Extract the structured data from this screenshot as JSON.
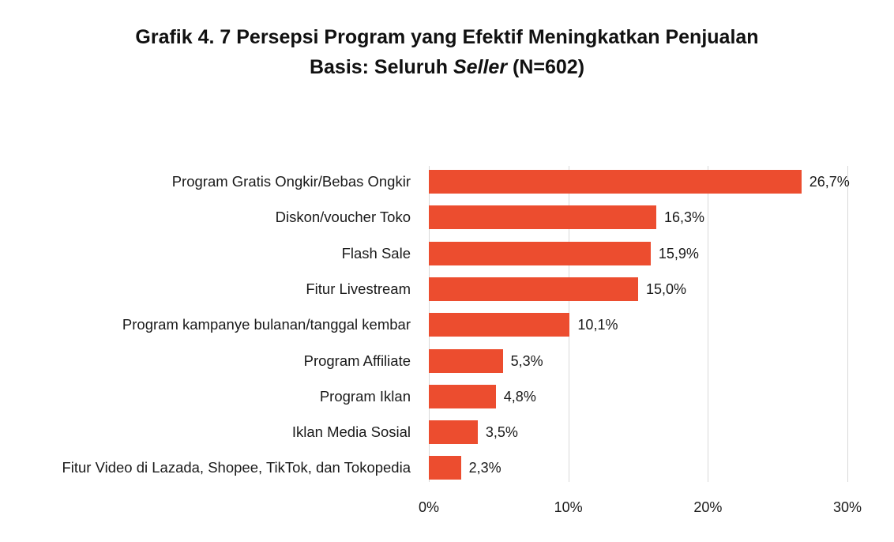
{
  "title": {
    "line1": "Grafik 4. 7  Persepsi Program yang Efektif Meningkatkan Penjualan",
    "line2_prefix": "Basis: Seluruh ",
    "line2_italic": "Seller",
    "line2_suffix": " (N=602)"
  },
  "colors": {
    "bar": "#ec4d2f",
    "gridline": "#d9d9d9",
    "text": "#1a1a1a"
  },
  "chart_data": {
    "type": "bar",
    "orientation": "horizontal",
    "title": "Grafik 4. 7 Persepsi Program yang Efektif Meningkatkan Penjualan",
    "subtitle": "Basis: Seluruh Seller (N=602)",
    "xlabel": "",
    "ylabel": "",
    "categories": [
      "Program Gratis Ongkir/Bebas Ongkir",
      "Diskon/voucher Toko",
      "Flash Sale",
      "Fitur Livestream",
      "Program kampanye bulanan/tanggal kembar",
      "Program Affiliate",
      "Program Iklan",
      "Iklan Media Sosial",
      "Fitur Video di Lazada, Shopee, TikTok, dan Tokopedia"
    ],
    "values": [
      26.7,
      16.3,
      15.9,
      15.0,
      10.1,
      5.3,
      4.8,
      3.5,
      2.3
    ],
    "value_labels": [
      "26,7%",
      "16,3%",
      "15,9%",
      "15,0%",
      "10,1%",
      "5,3%",
      "4,8%",
      "3,5%",
      "2,3%"
    ],
    "xlim": [
      0,
      30
    ],
    "x_ticks": [
      0,
      10,
      20,
      30
    ],
    "x_tick_labels": [
      "0%",
      "10%",
      "20%",
      "30%"
    ],
    "grid": "vertical",
    "legend": "none",
    "unit": "%"
  }
}
